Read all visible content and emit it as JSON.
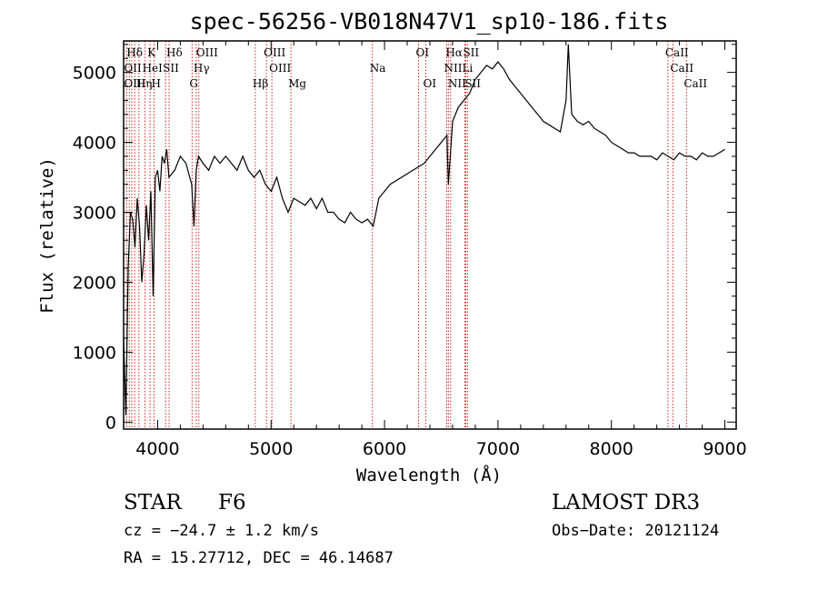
{
  "chart_data": {
    "type": "line",
    "title": "spec-56256-VB018N47V1_sp10-186.fits",
    "xlabel": "Wavelength (Å)",
    "ylabel": "Flux (relative)",
    "xlim": [
      3700,
      9100
    ],
    "ylim": [
      -100,
      5450
    ],
    "x_ticks": [
      4000,
      5000,
      6000,
      7000,
      8000,
      9000
    ],
    "y_ticks": [
      0,
      1000,
      2000,
      3000,
      4000,
      5000
    ],
    "grid": false,
    "series": [
      {
        "x": [
          3700,
          3720,
          3740,
          3760,
          3780,
          3800,
          3820,
          3840,
          3860,
          3880,
          3900,
          3920,
          3940,
          3960,
          3980,
          4000,
          4020,
          4040,
          4060,
          4080,
          4100,
          4150,
          4200,
          4250,
          4300,
          4320,
          4340,
          4360,
          4400,
          4450,
          4500,
          4550,
          4600,
          4650,
          4700,
          4750,
          4800,
          4850,
          4900,
          4950,
          5000,
          5050,
          5100,
          5150,
          5200,
          5250,
          5300,
          5350,
          5400,
          5450,
          5500,
          5550,
          5600,
          5650,
          5700,
          5750,
          5800,
          5850,
          5900,
          5950,
          6000,
          6050,
          6100,
          6150,
          6200,
          6250,
          6300,
          6350,
          6400,
          6450,
          6500,
          6550,
          6563,
          6600,
          6650,
          6700,
          6750,
          6800,
          6850,
          6900,
          6950,
          7000,
          7050,
          7100,
          7150,
          7200,
          7250,
          7300,
          7350,
          7400,
          7450,
          7500,
          7550,
          7600,
          7620,
          7650,
          7700,
          7750,
          7800,
          7850,
          7900,
          7950,
          8000,
          8050,
          8100,
          8150,
          8200,
          8250,
          8300,
          8350,
          8400,
          8450,
          8500,
          8550,
          8600,
          8650,
          8700,
          8750,
          8800,
          8850,
          8900,
          8950,
          9000
        ],
        "y": [
          1200,
          100,
          2200,
          3000,
          2900,
          2500,
          3200,
          2800,
          2000,
          2400,
          3100,
          2600,
          3300,
          1800,
          3500,
          3600,
          3300,
          3800,
          3700,
          3900,
          3500,
          3600,
          3800,
          3700,
          3400,
          2800,
          3600,
          3800,
          3700,
          3600,
          3800,
          3700,
          3800,
          3700,
          3600,
          3800,
          3600,
          3500,
          3600,
          3400,
          3300,
          3500,
          3200,
          3000,
          3200,
          3150,
          3100,
          3200,
          3050,
          3200,
          3000,
          3000,
          2900,
          2850,
          3000,
          2900,
          2850,
          2900,
          2800,
          3200,
          3300,
          3400,
          3450,
          3500,
          3550,
          3600,
          3650,
          3700,
          3800,
          3900,
          4000,
          4100,
          3400,
          4300,
          4500,
          4600,
          4700,
          4900,
          5000,
          5100,
          5050,
          5150,
          5050,
          4900,
          4800,
          4700,
          4600,
          4500,
          4400,
          4300,
          4250,
          4200,
          4150,
          4600,
          5400,
          4400,
          4300,
          4250,
          4300,
          4200,
          4150,
          4100,
          4000,
          3950,
          3900,
          3850,
          3850,
          3800,
          3800,
          3800,
          3750,
          3850,
          3800,
          3750,
          3850,
          3800,
          3800,
          3750,
          3850,
          3800,
          3800,
          3850,
          3900
        ]
      }
    ],
    "line_labels": [
      {
        "label": "Hδ",
        "wl": 3750,
        "row": 0
      },
      {
        "label": "K",
        "wl": 3933,
        "row": 0
      },
      {
        "label": "Hδ",
        "wl": 4101,
        "row": 0
      },
      {
        "label": "OIII",
        "wl": 4363,
        "row": 0
      },
      {
        "label": "OIII",
        "wl": 4959,
        "row": 0
      },
      {
        "label": "OI",
        "wl": 6300,
        "row": 0
      },
      {
        "label": "Hα",
        "wl": 6563,
        "row": 0
      },
      {
        "label": "SII",
        "wl": 6716,
        "row": 0
      },
      {
        "label": "CaII",
        "wl": 8498,
        "row": 0
      },
      {
        "label": "OII",
        "wl": 3727,
        "row": 1
      },
      {
        "label": "HeI",
        "wl": 3889,
        "row": 1
      },
      {
        "label": "SII",
        "wl": 4070,
        "row": 1
      },
      {
        "label": "Hγ",
        "wl": 4340,
        "row": 1
      },
      {
        "label": "OIII",
        "wl": 5007,
        "row": 1
      },
      {
        "label": "Na",
        "wl": 5893,
        "row": 1
      },
      {
        "label": "NII",
        "wl": 6548,
        "row": 1
      },
      {
        "label": "Li",
        "wl": 6708,
        "row": 1
      },
      {
        "label": "CaII",
        "wl": 8542,
        "row": 1
      },
      {
        "label": "OIII",
        "wl": 3727,
        "row": 2
      },
      {
        "label": "Hη",
        "wl": 3835,
        "row": 2
      },
      {
        "label": "H",
        "wl": 3968,
        "row": 2
      },
      {
        "label": "G",
        "wl": 4304,
        "row": 2
      },
      {
        "label": "Hβ",
        "wl": 4861,
        "row": 2
      },
      {
        "label": "Mg",
        "wl": 5175,
        "row": 2
      },
      {
        "label": "OI",
        "wl": 6364,
        "row": 2
      },
      {
        "label": "NII",
        "wl": 6583,
        "row": 2
      },
      {
        "label": "SII",
        "wl": 6731,
        "row": 2
      },
      {
        "label": "CaII",
        "wl": 8662,
        "row": 2
      }
    ],
    "line_marker_wavelengths": [
      3727,
      3750,
      3771,
      3798,
      3835,
      3889,
      3933,
      3968,
      4070,
      4101,
      4304,
      4340,
      4363,
      4861,
      4959,
      5007,
      5175,
      5893,
      6300,
      6364,
      6548,
      6563,
      6583,
      6708,
      6716,
      6731,
      8498,
      8542,
      8662
    ],
    "line_marker_color": "#cc2222"
  },
  "info": {
    "class_label": "STAR",
    "subclass": "F6",
    "survey": "LAMOST DR3",
    "cz": "cz = −24.7 ± 1.2 km/s",
    "obs_date": "Obs−Date: 20121124",
    "radec": "RA =  15.27712, DEC =  46.14687"
  }
}
